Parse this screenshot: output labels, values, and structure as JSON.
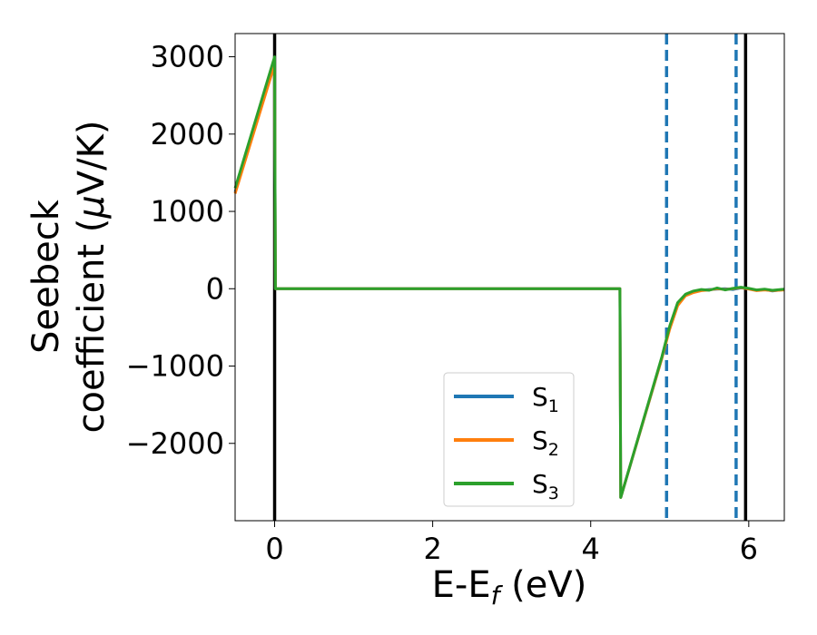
{
  "chart_data": {
    "type": "line",
    "xlabel": "E-E",
    "xlabel_sub": "f",
    "xlabel_unit": " (eV)",
    "ylabel_line1": "Seebeck",
    "ylabel_line2": "coefficient  (",
    "ylabel_mu": "μ",
    "ylabel_unit": "V/K)",
    "xlim": [
      -0.5,
      6.45
    ],
    "ylim": [
      -3000,
      3300
    ],
    "xticks": [
      0,
      2,
      4,
      6
    ],
    "xtick_labels": [
      "0",
      "2",
      "4",
      "6"
    ],
    "yticks": [
      3000,
      2000,
      1000,
      0,
      -1000,
      -2000
    ],
    "ytick_labels": [
      "3000",
      "2000",
      "1000",
      "0",
      "−1000",
      "−2000"
    ],
    "legend_position": "lower-right",
    "series": [
      {
        "name": "S",
        "sub": "1",
        "color": "#1f77b4",
        "x": [
          -0.5,
          0.0,
          0.01,
          4.37,
          4.38,
          4.9,
          5.0,
          5.1,
          5.2,
          5.3,
          5.4,
          5.5,
          5.6,
          5.7,
          5.8,
          5.9,
          6.0,
          6.1,
          6.2,
          6.3,
          6.45
        ],
        "y": [
          1250,
          2950,
          0,
          0,
          -2700,
          -900,
          -500,
          -200,
          -80,
          -40,
          -20,
          -10,
          -5,
          0,
          -10,
          10,
          0,
          -20,
          -10,
          -30,
          -10
        ]
      },
      {
        "name": "S",
        "sub": "2",
        "color": "#ff7f0e",
        "x": [
          -0.5,
          0.0,
          0.01,
          4.37,
          4.38,
          4.9,
          5.0,
          5.1,
          5.2,
          5.3,
          5.4,
          5.5,
          5.6,
          5.7,
          5.8,
          5.9,
          6.0,
          6.1,
          6.2,
          6.3,
          6.45
        ],
        "y": [
          1230,
          2900,
          0,
          0,
          -2700,
          -900,
          -520,
          -220,
          -90,
          -50,
          -25,
          -15,
          0,
          -10,
          0,
          15,
          -5,
          -25,
          -15,
          -25,
          -15
        ]
      },
      {
        "name": "S",
        "sub": "3",
        "color": "#2ca02c",
        "x": [
          -0.5,
          0.0,
          0.01,
          4.37,
          4.38,
          4.9,
          5.0,
          5.1,
          5.2,
          5.3,
          5.4,
          5.5,
          5.6,
          5.7,
          5.8,
          5.9,
          6.0,
          6.1,
          6.2,
          6.3,
          6.45
        ],
        "y": [
          1300,
          3000,
          0,
          0,
          -2700,
          -880,
          -480,
          -180,
          -70,
          -30,
          -10,
          -20,
          10,
          -15,
          5,
          20,
          5,
          -15,
          -5,
          -20,
          -5
        ]
      }
    ],
    "vlines": [
      {
        "x": 0.0,
        "style": "solid",
        "color": "#000000"
      },
      {
        "x": 5.96,
        "style": "solid",
        "color": "#000000"
      },
      {
        "x": 4.96,
        "style": "dashed",
        "color": "#1f77b4"
      },
      {
        "x": 5.84,
        "style": "dashed",
        "color": "#1f77b4"
      }
    ]
  }
}
